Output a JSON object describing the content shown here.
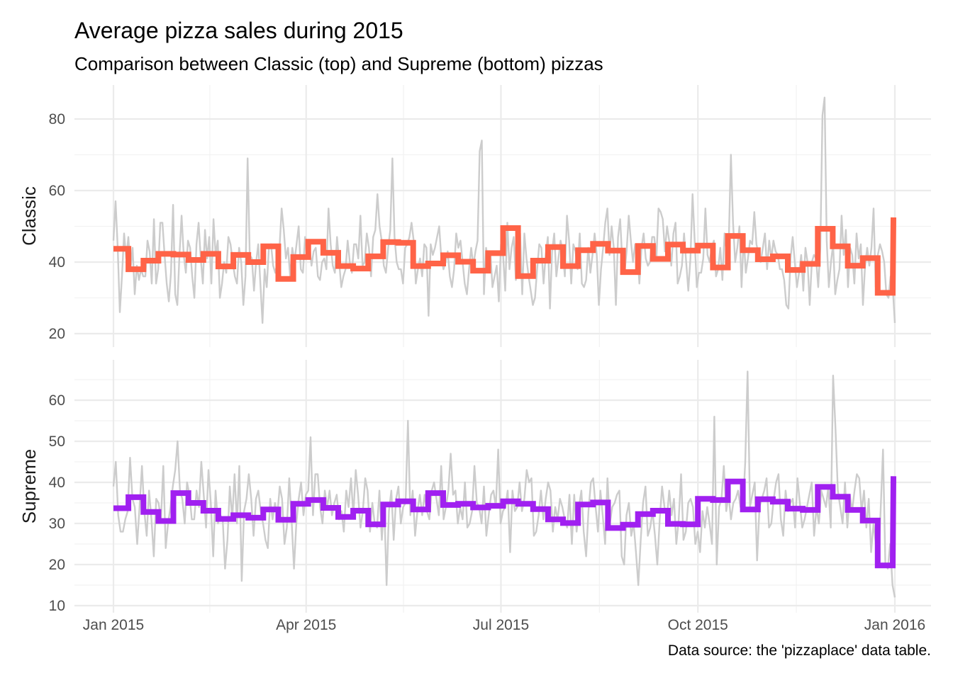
{
  "chart_data": {
    "type": "line",
    "title": "Average pizza sales during 2015",
    "subtitle": "Comparison between Classic (top) and Supreme (bottom) pizzas",
    "caption": "Data source: the 'pizzaplace' data table.",
    "x_axis": {
      "range": [
        "2015-01-01",
        "2016-01-01"
      ],
      "ticks": [
        "2015-01-01",
        "2015-04-01",
        "2015-07-01",
        "2015-10-01",
        "2016-01-01"
      ],
      "tick_labels": [
        "Jan 2015",
        "Apr 2015",
        "Jul 2015",
        "Oct 2015",
        "Jan 2016"
      ]
    },
    "grid": true,
    "legend": "none",
    "panels": [
      {
        "name": "Classic",
        "color": "#ff6347",
        "ylim": [
          20,
          88
        ],
        "yticks": [
          20,
          40,
          60,
          80
        ],
        "daily_values": [
          46,
          57,
          44,
          26,
          36,
          48,
          41,
          47,
          38,
          44,
          31,
          39,
          35,
          38,
          36,
          36,
          46,
          43,
          34,
          52,
          34,
          38,
          51,
          51,
          42,
          34,
          29,
          37,
          56,
          31,
          28,
          42,
          53,
          42,
          37,
          46,
          44,
          36,
          30,
          45,
          51,
          41,
          34,
          49,
          41,
          47,
          34,
          52,
          42,
          46,
          30,
          34,
          40,
          37,
          47,
          45,
          40,
          36,
          34,
          44,
          40,
          28,
          36,
          69,
          42,
          41,
          32,
          40,
          45,
          34,
          23,
          38,
          33,
          44,
          45,
          39,
          37,
          40,
          44,
          55,
          49,
          41,
          44,
          36,
          44,
          40,
          45,
          50,
          38,
          37,
          47,
          43,
          45,
          39,
          43,
          44,
          36,
          35,
          40,
          41,
          38,
          55,
          45,
          39,
          37,
          47,
          40,
          33,
          36,
          38,
          46,
          40,
          37,
          45,
          45,
          41,
          53,
          39,
          40,
          48,
          44,
          36,
          47,
          49,
          59,
          50,
          46,
          39,
          37,
          44,
          49,
          69,
          47,
          40,
          38,
          38,
          34,
          44,
          45,
          47,
          51,
          46,
          34,
          38,
          41,
          36,
          45,
          44,
          25,
          45,
          42,
          44,
          47,
          50,
          41,
          38,
          40,
          43,
          36,
          33,
          38,
          48,
          44,
          46,
          40,
          34,
          31,
          38,
          44,
          39,
          43,
          46,
          71,
          74,
          31,
          44,
          40,
          43,
          33,
          36,
          39,
          29,
          45,
          42,
          32,
          51,
          38,
          44,
          47,
          35,
          39,
          48,
          31,
          48,
          41,
          36,
          32,
          28,
          30,
          38,
          45,
          44,
          34,
          42,
          47,
          27,
          43,
          48,
          36,
          41,
          46,
          43,
          36,
          53,
          46,
          34,
          45,
          43,
          38,
          48,
          34,
          33,
          35,
          44,
          37,
          42,
          48,
          42,
          28,
          38,
          44,
          51,
          55,
          42,
          50,
          44,
          28,
          47,
          52,
          40,
          37,
          43,
          53,
          46,
          40,
          45,
          44,
          34,
          44,
          48,
          41,
          39,
          40,
          47,
          47,
          41,
          55,
          54,
          52,
          43,
          50,
          46,
          39,
          48,
          51,
          34,
          36,
          39,
          48,
          40,
          32,
          41,
          59,
          46,
          33,
          37,
          37,
          41,
          55,
          42,
          40,
          44,
          46,
          36,
          38,
          44,
          35,
          48,
          42,
          46,
          70,
          51,
          40,
          44,
          50,
          33,
          47,
          37,
          41,
          46,
          45,
          54,
          45,
          42,
          40,
          44,
          48,
          38,
          46,
          41,
          46,
          43,
          42,
          38,
          38,
          35,
          28,
          27,
          41,
          47,
          40,
          33,
          37,
          42,
          32,
          44,
          40,
          28,
          40,
          42,
          41,
          33,
          44,
          81,
          86,
          46,
          33,
          40,
          45,
          31,
          35,
          38,
          53,
          42,
          49,
          33,
          44,
          42,
          34,
          48,
          41,
          45,
          28,
          39,
          44,
          39,
          44,
          55,
          33,
          42,
          45,
          43,
          40,
          31,
          30,
          36,
          33,
          23
        ],
        "weekly_avg": [
          43.7,
          38.0,
          40.4,
          42.3,
          42.1,
          40.6,
          42.3,
          38.8,
          42.0,
          40.0,
          44.4,
          35.3,
          41.4,
          45.7,
          42.6,
          38.9,
          38.2,
          41.6,
          45.6,
          45.4,
          38.9,
          39.6,
          41.9,
          40.1,
          37.6,
          42.5,
          49.5,
          36.1,
          40.4,
          44.2,
          38.9,
          43.3,
          45.1,
          43.2,
          37.2,
          44.5,
          40.9,
          44.9,
          43.2,
          44.6,
          38.5,
          47.3,
          43.3,
          40.8,
          41.6,
          37.8,
          39.5,
          49.3,
          44.4,
          39.0,
          41.1,
          31.4,
          52.5
        ]
      },
      {
        "name": "Supreme",
        "color": "#a020f0",
        "ylim": [
          9.5,
          69.5
        ],
        "yticks": [
          10,
          20,
          30,
          40,
          50,
          60
        ],
        "daily_values": [
          39,
          45,
          32,
          28,
          28,
          31,
          33,
          46,
          36,
          34,
          25,
          34,
          44,
          33,
          27,
          38,
          31,
          22,
          36,
          35,
          31,
          44,
          24,
          30,
          34,
          39,
          43,
          50,
          38,
          36,
          30,
          40,
          37,
          31,
          31,
          38,
          34,
          45,
          37,
          29,
          43,
          35,
          22,
          38,
          30,
          32,
          31,
          19,
          26,
          39,
          31,
          42,
          30,
          44,
          16,
          33,
          36,
          42,
          36,
          27,
          36,
          38,
          33,
          30,
          26,
          24,
          36,
          31,
          35,
          32,
          39,
          36,
          25,
          29,
          41,
          31,
          19,
          30,
          36,
          40,
          32,
          37,
          38,
          51,
          32,
          42,
          42,
          34,
          30,
          38,
          34,
          38,
          32,
          35,
          37,
          31,
          33,
          28,
          38,
          34,
          41,
          32,
          43,
          37,
          29,
          33,
          41,
          38,
          28,
          35,
          30,
          29,
          38,
          26,
          35,
          15,
          33,
          38,
          26,
          36,
          39,
          30,
          34,
          35,
          55,
          32,
          38,
          27,
          33,
          37,
          32,
          37,
          33,
          31,
          38,
          40,
          36,
          32,
          44,
          31,
          34,
          38,
          47,
          37,
          38,
          30,
          34,
          31,
          40,
          29,
          30,
          33,
          44,
          35,
          34,
          30,
          39,
          27,
          32,
          37,
          38,
          34,
          48,
          30,
          33,
          34,
          38,
          23,
          38,
          33,
          34,
          40,
          33,
          36,
          43,
          40,
          41,
          27,
          28,
          32,
          38,
          31,
          36,
          40,
          38,
          28,
          34,
          31,
          36,
          34,
          31,
          29,
          37,
          25,
          37,
          28,
          34,
          38,
          28,
          22,
          33,
          40,
          41,
          34,
          28,
          38,
          32,
          25,
          41,
          30,
          34,
          35,
          37,
          38,
          22,
          20,
          32,
          35,
          27,
          30,
          23,
          15,
          26,
          35,
          39,
          27,
          29,
          33,
          27,
          20,
          31,
          39,
          34,
          31,
          38,
          32,
          36,
          25,
          31,
          42,
          26,
          28,
          35,
          36,
          34,
          25,
          28,
          23,
          33,
          29,
          34,
          30,
          25,
          56,
          20,
          34,
          36,
          44,
          33,
          37,
          31,
          35,
          36,
          38,
          34,
          33,
          45,
          67,
          34,
          37,
          40,
          21,
          34,
          36,
          38,
          41,
          29,
          30,
          36,
          40,
          42,
          31,
          27,
          38,
          33,
          35,
          36,
          29,
          41,
          35,
          29,
          31,
          34,
          37,
          40,
          27,
          34,
          30,
          38,
          36,
          34,
          39,
          29,
          66,
          53,
          38,
          34,
          30,
          40,
          29,
          37,
          33,
          38,
          42,
          41,
          33,
          38,
          29,
          36,
          23,
          30,
          25,
          20,
          33,
          48,
          20,
          19,
          25,
          15,
          12
        ],
        "weekly_avg": [
          33.7,
          36.4,
          32.8,
          30.6,
          37.4,
          35.0,
          33.1,
          31.1,
          32.0,
          31.4,
          33.4,
          30.9,
          34.8,
          35.7,
          33.8,
          31.6,
          33.1,
          29.8,
          34.6,
          35.4,
          33.4,
          37.4,
          34.5,
          34.8,
          33.9,
          34.3,
          35.4,
          34.8,
          33.5,
          31.0,
          30.1,
          34.6,
          35.1,
          28.9,
          29.7,
          32.3,
          33.1,
          29.9,
          29.8,
          36.0,
          35.7,
          40.2,
          33.4,
          35.9,
          35.3,
          33.6,
          33.3,
          38.9,
          36.5,
          33.3,
          30.7,
          19.8,
          41.5
        ]
      }
    ]
  }
}
